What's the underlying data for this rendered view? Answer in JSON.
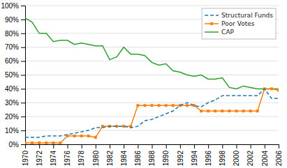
{
  "chart_data": {
    "type": "line",
    "x": [
      1970,
      1971,
      1972,
      1973,
      1974,
      1975,
      1976,
      1977,
      1978,
      1979,
      1980,
      1981,
      1982,
      1983,
      1984,
      1985,
      1986,
      1987,
      1988,
      1989,
      1990,
      1991,
      1992,
      1993,
      1994,
      1995,
      1996,
      1997,
      1998,
      1999,
      2000,
      2001,
      2002,
      2003,
      2004,
      2005,
      2006
    ],
    "series": [
      {
        "name": "Structural Funds",
        "line_style": "dashed",
        "values": [
          5,
          5,
          5,
          6,
          6,
          6,
          7,
          8,
          9,
          10,
          12,
          12,
          13,
          13,
          13,
          12,
          13,
          17,
          18,
          20,
          22,
          24,
          28,
          30,
          28,
          27,
          30,
          32,
          35,
          35,
          35,
          35,
          35,
          35,
          40,
          33,
          33
        ]
      },
      {
        "name": "Poor Votes",
        "line_style": "solid",
        "marker": "square",
        "values": [
          1,
          1,
          1,
          1,
          1,
          1,
          6,
          6,
          6,
          6,
          5,
          13,
          13,
          13,
          13,
          13,
          28,
          28,
          28,
          28,
          28,
          28,
          28,
          28,
          28,
          24,
          24,
          24,
          24,
          24,
          24,
          24,
          24,
          24,
          40,
          40,
          39
        ]
      },
      {
        "name": "CAP",
        "line_style": "solid",
        "values": [
          91,
          88,
          80,
          80,
          74,
          75,
          75,
          72,
          73,
          72,
          71,
          71,
          61,
          63,
          70,
          65,
          65,
          64,
          59,
          57,
          58,
          53,
          52,
          50,
          49,
          50,
          47,
          47,
          48,
          41,
          40,
          42,
          41,
          40,
          40,
          40,
          40
        ]
      }
    ],
    "xlim": [
      1970,
      2006
    ],
    "xticks": [
      1970,
      1972,
      1974,
      1976,
      1978,
      1980,
      1982,
      1984,
      1986,
      1988,
      1990,
      1992,
      1994,
      1996,
      1998,
      2000,
      2002,
      2004,
      2006
    ],
    "ylim": [
      0,
      100
    ],
    "yticks": [
      {
        "value": 0,
        "label": "0%"
      },
      {
        "value": 10,
        "label": "10%"
      },
      {
        "value": 20,
        "label": "20%"
      },
      {
        "value": 30,
        "label": "30%"
      },
      {
        "value": 40,
        "label": "40%"
      },
      {
        "value": 50,
        "label": "50%"
      },
      {
        "value": 60,
        "label": "60%"
      },
      {
        "value": 70,
        "label": "70%"
      },
      {
        "value": 80,
        "label": "80%"
      },
      {
        "value": 90,
        "label": "90%"
      },
      {
        "value": 100,
        "label": "100%"
      }
    ],
    "grid": "y",
    "legend": "upper right"
  }
}
